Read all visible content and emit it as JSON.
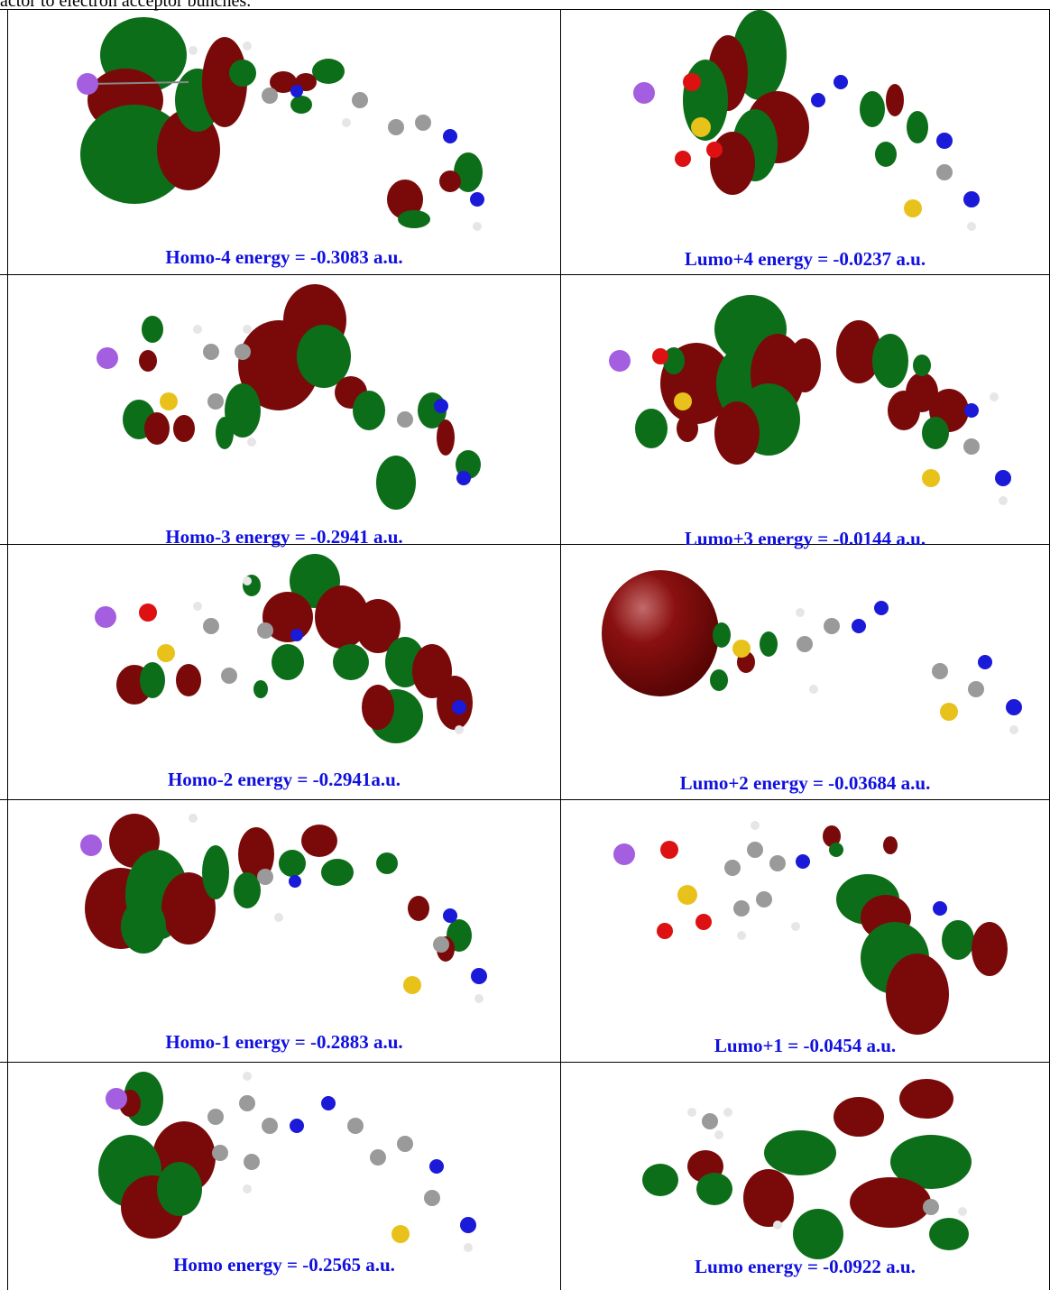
{
  "intro_text": "actor to electron acceptor bunches.",
  "rows": [
    {
      "left_caption": "Homo-4 energy = -0.3083 a.u.",
      "right_caption": "Lumo+4 energy = -0.0237 a.u."
    },
    {
      "left_caption": "Homo-3 energy = -0.2941 a.u.",
      "right_caption": "Lumo+3 energy = -0.0144 a.u."
    },
    {
      "left_caption": "Homo-2 energy = -0.2941a.u.",
      "right_caption": "Lumo+2 energy = -0.03684 a.u."
    },
    {
      "left_caption": "Homo-1 energy = -0.2883 a.u.",
      "right_caption": "Lumo+1 = -0.0454 a.u."
    },
    {
      "left_caption": "Homo energy = -0.2565 a.u.",
      "right_caption": "Lumo energy = -0.0922 a.u."
    }
  ],
  "colors": {
    "caption": "#1010e0",
    "orbital_positive": "#7a0a0a",
    "orbital_negative": "#0d6e1a",
    "carbon": "#9a9a9a",
    "hydrogen": "#e6e6e6",
    "nitrogen": "#1a1ad8",
    "oxygen": "#dd1111",
    "sulfur": "#e8c21a",
    "iodine": "#a45ee0"
  }
}
